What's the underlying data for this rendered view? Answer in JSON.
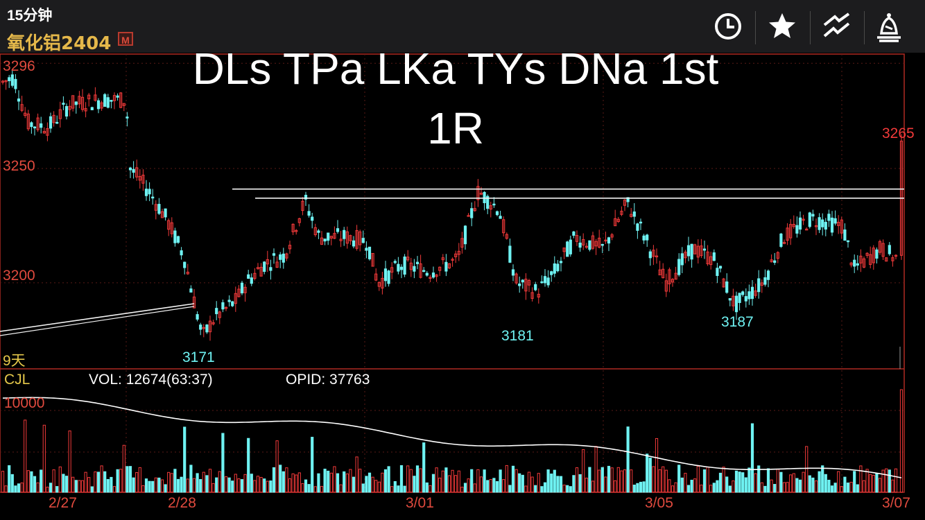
{
  "header": {
    "interval": "15分钟",
    "symbol": "氧化铝2404",
    "badge": "M",
    "toolbar": [
      {
        "name": "clock-icon"
      },
      {
        "name": "star-icon"
      },
      {
        "name": "draw-lines-icon"
      },
      {
        "name": "alert-bell-icon"
      }
    ]
  },
  "overlay_title": {
    "line1": "DLs TPa LKa TYs DNa 1st",
    "line2": "1R"
  },
  "chart_data": {
    "type": "candlestick",
    "price_axis": {
      "ticks": [
        3296,
        3250,
        3200
      ],
      "ylim": [
        3163,
        3300
      ]
    },
    "annotations": {
      "high": "3265",
      "lows": [
        "3171",
        "3181",
        "3187"
      ]
    },
    "range_label": "9天",
    "x_ticks": [
      "2/27",
      "2/28",
      "3/01",
      "3/05",
      "3/07"
    ],
    "horizontal_lines": [
      3241,
      3237
    ],
    "volume_panel": {
      "indicator": "CJL",
      "vol_text": "VOL: 12674(63:37)",
      "opid_text": "OPID: 37763",
      "tick": "10000",
      "ylim": [
        0,
        12000
      ]
    },
    "colors": {
      "up": "#f23a3a",
      "down": "#6ff2f2",
      "ma": "#ffffff",
      "axis_text": "#e04a3e",
      "frame": "#b02a22"
    }
  }
}
